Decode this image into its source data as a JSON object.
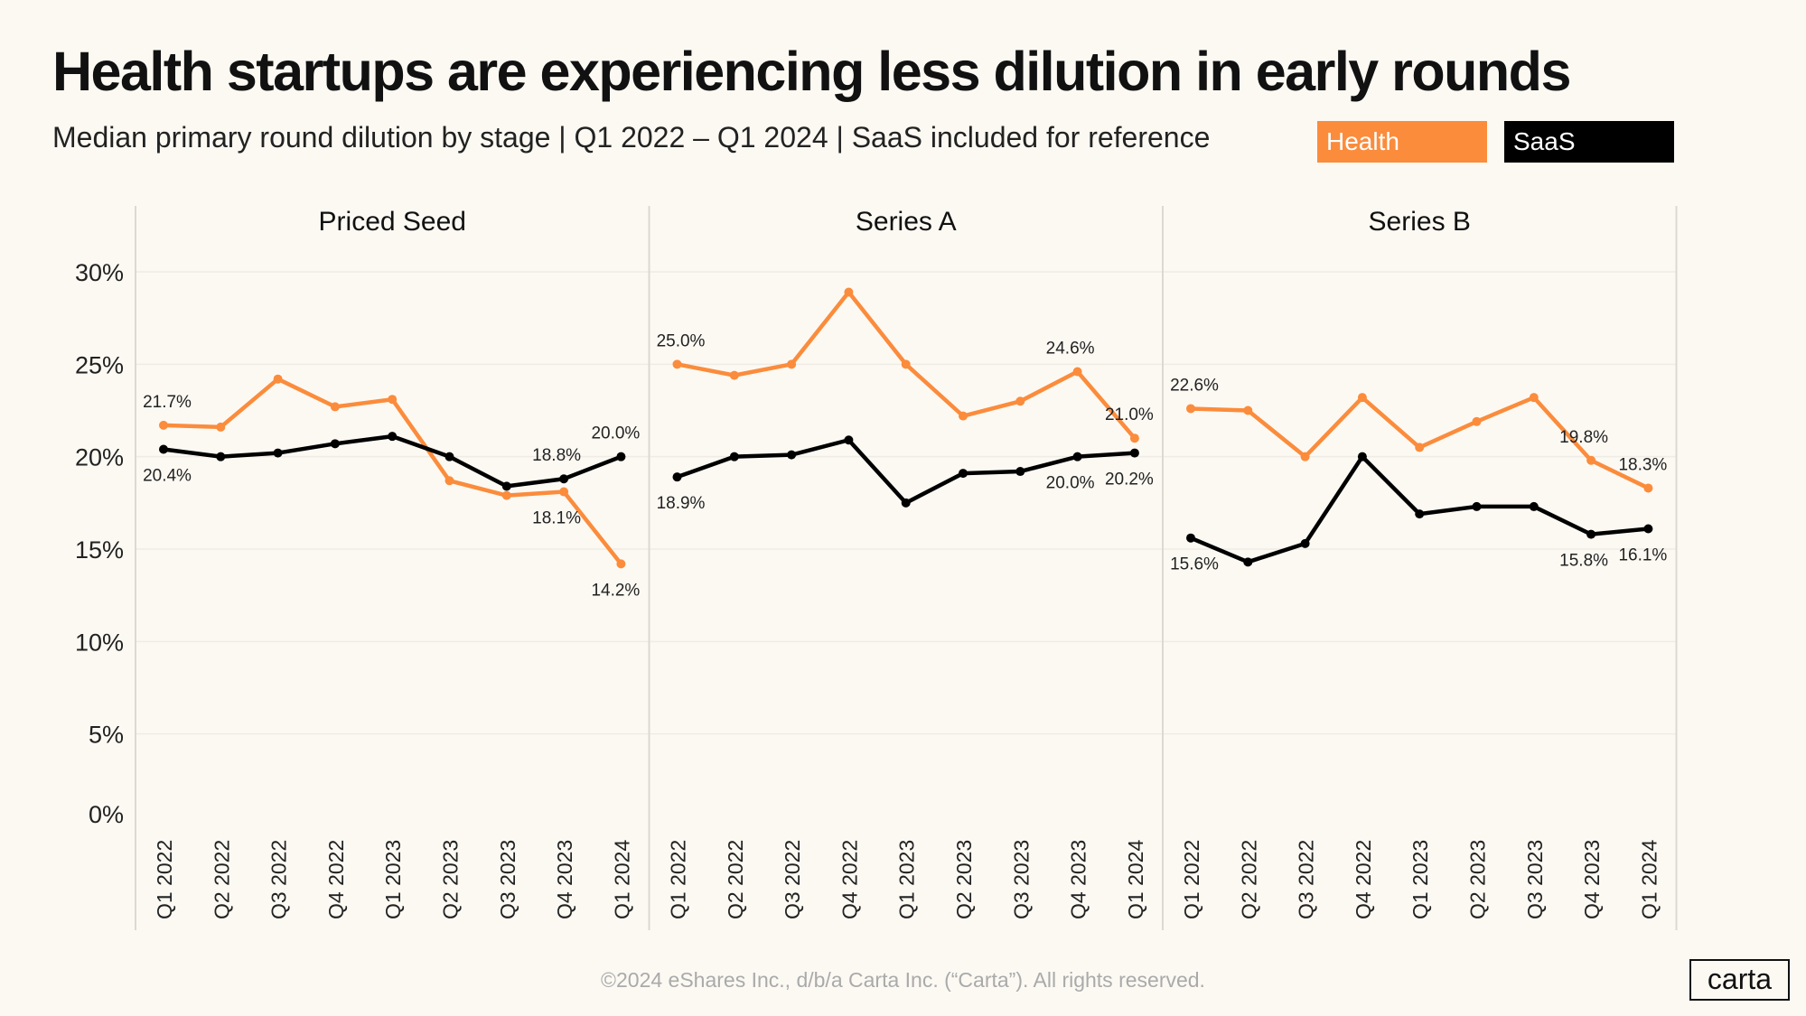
{
  "title": "Health startups are experiencing less dilution in early rounds",
  "subtitle": "Median primary round dilution by stage | Q1 2022 – Q1 2024 | SaaS included for reference",
  "footer": "©2024 eShares Inc., d/b/a Carta Inc. (“Carta”). All rights reserved.",
  "logo": "carta",
  "colors": {
    "Health": "#fb8c3c",
    "SaaS": "#000000",
    "background": "#fcf9f3"
  },
  "legend": [
    {
      "name": "Health",
      "color": "#fb8c3c"
    },
    {
      "name": "SaaS",
      "color": "#000000"
    }
  ],
  "chart_data": {
    "type": "line",
    "legend_position": "top-right",
    "grid": true,
    "ylim": [
      0,
      30
    ],
    "y_ticks": [
      "0%",
      "5%",
      "10%",
      "15%",
      "20%",
      "25%",
      "30%"
    ],
    "categories": [
      "Q1 2022",
      "Q2 2022",
      "Q3 2022",
      "Q4 2022",
      "Q1 2023",
      "Q2 2023",
      "Q3 2023",
      "Q4 2023",
      "Q1 2024"
    ],
    "labeled_indices": [
      0,
      7,
      8
    ],
    "panels": [
      {
        "title": "Priced Seed",
        "series": [
          {
            "name": "Health",
            "values": [
              21.7,
              21.6,
              24.2,
              22.7,
              23.1,
              18.7,
              17.9,
              18.1,
              14.2
            ]
          },
          {
            "name": "SaaS",
            "values": [
              20.4,
              20.0,
              20.2,
              20.7,
              21.1,
              20.0,
              18.4,
              18.8,
              20.0
            ]
          }
        ]
      },
      {
        "title": "Series A",
        "series": [
          {
            "name": "Health",
            "values": [
              25.0,
              24.4,
              25.0,
              28.9,
              25.0,
              22.2,
              23.0,
              24.6,
              21.0
            ]
          },
          {
            "name": "SaaS",
            "values": [
              18.9,
              20.0,
              20.1,
              20.9,
              17.5,
              19.1,
              19.2,
              20.0,
              20.2
            ]
          }
        ]
      },
      {
        "title": "Series B",
        "series": [
          {
            "name": "Health",
            "values": [
              22.6,
              22.5,
              20.0,
              23.2,
              20.5,
              21.9,
              23.2,
              19.8,
              18.3
            ]
          },
          {
            "name": "SaaS",
            "values": [
              15.6,
              14.3,
              15.3,
              20.0,
              16.9,
              17.3,
              17.3,
              15.8,
              16.1
            ]
          }
        ]
      }
    ]
  }
}
